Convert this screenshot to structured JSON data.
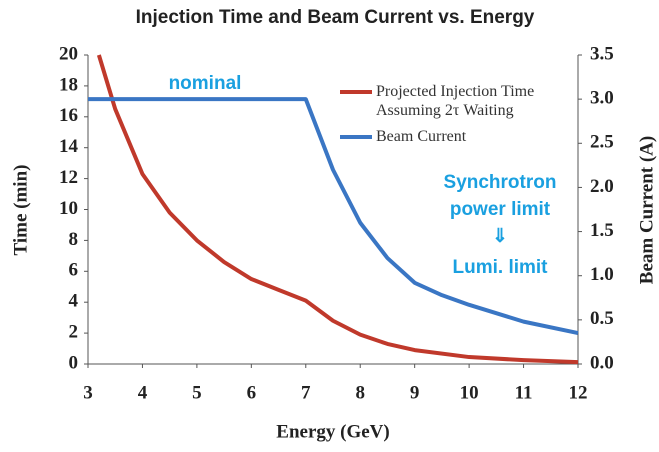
{
  "chart_data": {
    "type": "line",
    "title": "Injection Time and Beam Current vs. Energy",
    "x_label": "Energy (GeV)",
    "y_label": "Time (min)",
    "y2_label": "Beam Current (A)",
    "xlim": [
      3,
      12
    ],
    "xticks": [
      3,
      4,
      5,
      6,
      7,
      8,
      9,
      10,
      11,
      12
    ],
    "ylim": [
      0,
      20
    ],
    "yticks": [
      0,
      2,
      4,
      6,
      8,
      10,
      12,
      14,
      16,
      18,
      20
    ],
    "y2lim": [
      0,
      3.5
    ],
    "y2ticks": [
      {
        "value": 0,
        "label": "0.0"
      },
      {
        "value": 0.5,
        "label": "0.5"
      },
      {
        "value": 1,
        "label": "1.0"
      },
      {
        "value": 1.5,
        "label": "1.5"
      },
      {
        "value": 2,
        "label": "2.0"
      },
      {
        "value": 2.5,
        "label": "2.5"
      },
      {
        "value": 3,
        "label": "3.0"
      },
      {
        "value": 3.5,
        "label": "3.5"
      }
    ],
    "legend": "top-right",
    "series": [
      {
        "name": "Projected Injection Time Assuming 2τ Waiting",
        "color": "#c0392b",
        "axis": "y",
        "x": [
          3.2,
          3.5,
          4,
          4.5,
          5,
          5.5,
          6,
          6.5,
          7,
          7.5,
          8,
          8.5,
          9,
          10,
          11,
          12
        ],
        "values": [
          20,
          16.5,
          12.3,
          9.8,
          8.0,
          6.6,
          5.5,
          4.8,
          4.1,
          2.8,
          1.9,
          1.3,
          0.9,
          0.45,
          0.25,
          0.12
        ]
      },
      {
        "name": "Beam Current",
        "color": "#3a76c4",
        "axis": "y2",
        "x": [
          3,
          7,
          7.5,
          8,
          8.5,
          9,
          9.5,
          10,
          11,
          12
        ],
        "values": [
          3.0,
          3.0,
          2.2,
          1.6,
          1.2,
          0.92,
          0.78,
          0.67,
          0.48,
          0.35
        ]
      }
    ],
    "annotations": [
      "nominal",
      "Synchrotron",
      "power limit",
      "⇓",
      "Lumi. limit"
    ]
  }
}
